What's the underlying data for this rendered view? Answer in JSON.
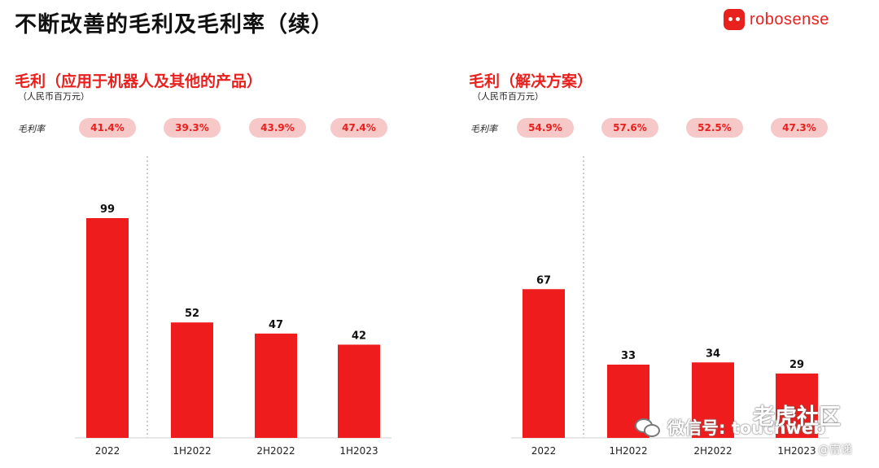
{
  "title": "不断改善的毛利及毛利率（续）",
  "logo": {
    "text": "robosense",
    "mark": "robosense-logo-icon",
    "color": "#e8201e"
  },
  "colors": {
    "bar": "#ee1c1c",
    "pill_bg": "#f7c8c8",
    "accent": "#e8201e"
  },
  "chart_data": [
    {
      "type": "bar",
      "title": "毛利（应用于机器人及其他的产品）",
      "subtitle": "（人民币百万元）",
      "categories": [
        "2022",
        "1H2022",
        "2H2022",
        "1H2023"
      ],
      "values": [
        99,
        52,
        47,
        42
      ],
      "ratio_label": "毛利率",
      "ratios": [
        "41.4%",
        "39.3%",
        "43.9%",
        "47.4%"
      ],
      "ylim": [
        0,
        110
      ],
      "divider_after_index": 0
    },
    {
      "type": "bar",
      "title": "毛利（解决方案）",
      "subtitle": "（人民币百万元）",
      "categories": [
        "2022",
        "1H2022",
        "2H2022",
        "1H2023"
      ],
      "values": [
        67,
        33,
        34,
        29
      ],
      "ratio_label": "毛利率",
      "ratios": [
        "54.9%",
        "57.6%",
        "52.5%",
        "47.3%"
      ],
      "ylim": [
        0,
        110
      ],
      "divider_after_index": 0
    }
  ],
  "watermarks": {
    "wechat": "微信号: touchweb",
    "community": "老虎社区",
    "author": "@雷递"
  }
}
